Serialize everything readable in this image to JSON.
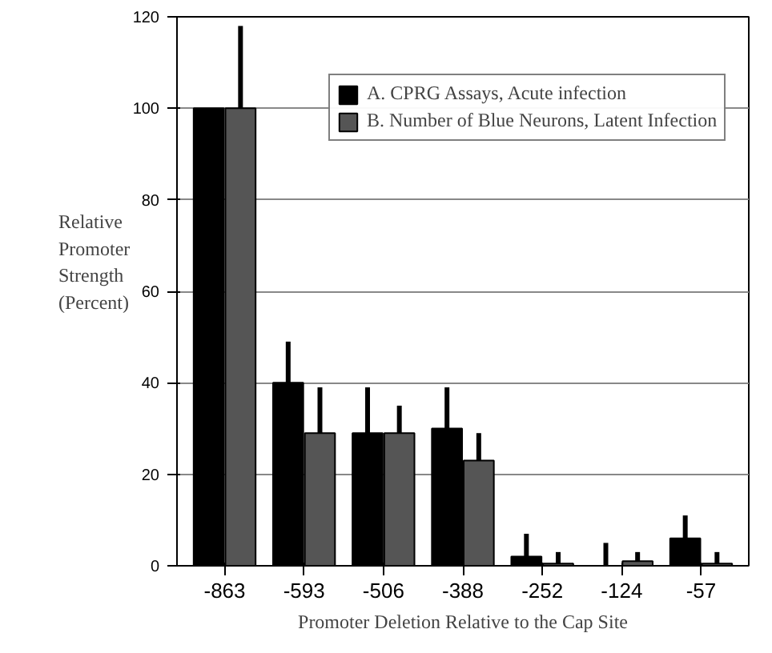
{
  "chart_data": {
    "type": "bar",
    "xlabel": "Promoter Deletion Relative to the Cap Site",
    "ylabel": "Relative Promoter Strength (Percent)",
    "categories": [
      "-863",
      "-593",
      "-506",
      "-388",
      "-252",
      "-124",
      "-57"
    ],
    "series": [
      {
        "name": "A. CPRG Assays, Acute infection",
        "color": "#000000",
        "values": [
          100,
          40,
          29,
          30,
          2,
          0,
          6
        ],
        "errors": [
          null,
          [
            40,
            49
          ],
          [
            29,
            39
          ],
          [
            30,
            39
          ],
          [
            2,
            7
          ],
          [
            0,
            5
          ],
          [
            6,
            11
          ]
        ]
      },
      {
        "name": "B. Number of Blue Neurons, Latent Infection",
        "color": "#555555",
        "values": [
          100,
          29,
          29,
          23,
          0.5,
          1,
          0.5
        ],
        "errors": [
          [
            100,
            118
          ],
          [
            29,
            39
          ],
          [
            29,
            35
          ],
          [
            23,
            29
          ],
          [
            0.5,
            3
          ],
          [
            1,
            3
          ],
          [
            0.5,
            3
          ]
        ]
      }
    ],
    "ylim": [
      0,
      120
    ],
    "yticks": [
      0,
      20,
      40,
      60,
      80,
      100,
      120
    ],
    "grid": "y",
    "legend": "top right"
  }
}
